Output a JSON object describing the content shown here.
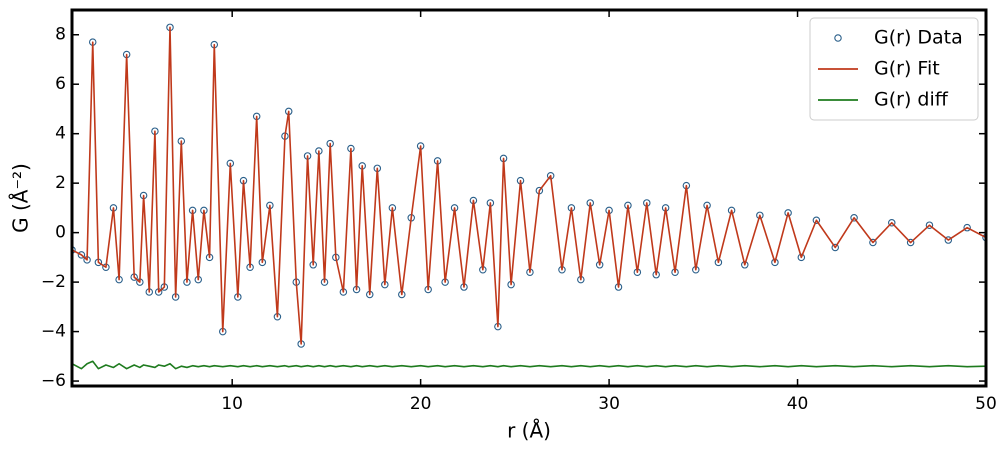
{
  "chart_data": {
    "type": "line",
    "xlabel": "r (Å)",
    "ylabel": "G (Å⁻²)",
    "xlim": [
      1.5,
      50
    ],
    "ylim": [
      -6.2,
      9
    ],
    "xticks": [
      10,
      20,
      30,
      40,
      50
    ],
    "yticks": [
      {
        "value": -6,
        "label": "−6"
      },
      {
        "value": -4,
        "label": "−4"
      },
      {
        "value": -2,
        "label": "−2"
      },
      0,
      2,
      4,
      6,
      8
    ],
    "legend": "upper right",
    "x": [
      1.5,
      2.0,
      2.3,
      2.6,
      2.9,
      3.3,
      3.7,
      4.0,
      4.4,
      4.8,
      5.1,
      5.3,
      5.6,
      5.9,
      6.1,
      6.4,
      6.7,
      7.0,
      7.3,
      7.6,
      7.9,
      8.2,
      8.5,
      8.8,
      9.05,
      9.5,
      9.9,
      10.3,
      10.6,
      10.95,
      11.3,
      11.6,
      12.0,
      12.4,
      12.8,
      13.0,
      13.4,
      13.66,
      14.0,
      14.3,
      14.6,
      14.9,
      15.2,
      15.5,
      15.9,
      16.3,
      16.6,
      16.9,
      17.3,
      17.7,
      18.1,
      18.5,
      19.0,
      19.5,
      20.0,
      20.4,
      20.9,
      21.3,
      21.8,
      22.3,
      22.8,
      23.3,
      23.7,
      24.1,
      24.4,
      24.8,
      25.3,
      25.8,
      26.3,
      26.9,
      27.5,
      28.0,
      28.5,
      29.0,
      29.5,
      30.0,
      30.5,
      31.0,
      31.5,
      32.0,
      32.5,
      33.0,
      33.5,
      34.1,
      34.6,
      35.2,
      35.8,
      36.5,
      37.2,
      38.0,
      38.8,
      39.5,
      40.2,
      41.0,
      42.0,
      43.0,
      44.0,
      45.0,
      46.0,
      47.0,
      48.0,
      49.0,
      50.0
    ],
    "series": [
      {
        "name": "G(r) Data",
        "style": "scatter",
        "color": "#2a5f8a",
        "values": [
          -0.7,
          -0.9,
          -1.1,
          7.7,
          -1.2,
          -1.4,
          1.0,
          -1.9,
          7.2,
          -1.8,
          -2.0,
          1.5,
          -2.4,
          4.1,
          -2.4,
          -2.2,
          8.3,
          -2.6,
          3.7,
          -2.0,
          0.9,
          -1.9,
          0.9,
          -1.0,
          7.6,
          -4.0,
          2.8,
          -2.6,
          2.1,
          -1.4,
          4.7,
          -1.2,
          1.1,
          -3.4,
          3.9,
          4.9,
          -2.0,
          -4.5,
          3.1,
          -1.3,
          3.3,
          -2.0,
          3.6,
          -1.0,
          -2.4,
          3.4,
          -2.3,
          2.7,
          -2.5,
          2.6,
          -2.1,
          1.0,
          -2.5,
          0.6,
          3.5,
          -2.3,
          2.9,
          -2.0,
          1.0,
          -2.2,
          1.3,
          -1.5,
          1.2,
          -3.8,
          3.0,
          -2.1,
          2.1,
          -1.6,
          1.7,
          2.3,
          -1.5,
          1.0,
          -1.9,
          1.2,
          -1.3,
          0.9,
          -2.2,
          1.1,
          -1.6,
          1.2,
          -1.7,
          1.0,
          -1.6,
          1.9,
          -1.5,
          1.1,
          -1.2,
          0.9,
          -1.3,
          0.7,
          -1.2,
          0.8,
          -1.0,
          0.5,
          -0.6,
          0.6,
          -0.4,
          0.4,
          -0.4,
          0.3,
          -0.3,
          0.2,
          -0.2
        ]
      },
      {
        "name": "G(r) Fit",
        "style": "line",
        "color": "#c0391b",
        "values": [
          -0.7,
          -0.9,
          -1.1,
          7.7,
          -1.2,
          -1.4,
          1.0,
          -1.9,
          7.2,
          -1.8,
          -2.0,
          1.5,
          -2.4,
          4.1,
          -2.4,
          -2.2,
          8.3,
          -2.6,
          3.7,
          -2.0,
          0.9,
          -1.9,
          0.9,
          -1.0,
          7.6,
          -4.0,
          2.8,
          -2.6,
          2.1,
          -1.4,
          4.7,
          -1.2,
          1.1,
          -3.4,
          3.9,
          4.9,
          -2.0,
          -4.5,
          3.1,
          -1.3,
          3.3,
          -2.0,
          3.6,
          -1.0,
          -2.4,
          3.4,
          -2.3,
          2.7,
          -2.5,
          2.6,
          -2.1,
          1.0,
          -2.5,
          0.6,
          3.5,
          -2.3,
          2.9,
          -2.0,
          1.0,
          -2.2,
          1.3,
          -1.5,
          1.2,
          -3.8,
          3.0,
          -2.1,
          2.1,
          -1.6,
          1.7,
          2.3,
          -1.5,
          1.0,
          -1.9,
          1.2,
          -1.3,
          0.9,
          -2.2,
          1.1,
          -1.6,
          1.2,
          -1.7,
          1.0,
          -1.6,
          1.9,
          -1.5,
          1.1,
          -1.2,
          0.9,
          -1.3,
          0.7,
          -1.2,
          0.8,
          -1.0,
          0.5,
          -0.6,
          0.6,
          -0.4,
          0.4,
          -0.4,
          0.3,
          -0.3,
          0.2,
          -0.2
        ]
      },
      {
        "name": "G(r) diff",
        "style": "line",
        "color": "#1e7b1e",
        "values": [
          -5.3,
          -5.5,
          -5.3,
          -5.2,
          -5.5,
          -5.35,
          -5.45,
          -5.3,
          -5.5,
          -5.35,
          -5.45,
          -5.35,
          -5.4,
          -5.45,
          -5.35,
          -5.4,
          -5.3,
          -5.5,
          -5.4,
          -5.45,
          -5.38,
          -5.42,
          -5.38,
          -5.42,
          -5.38,
          -5.42,
          -5.38,
          -5.42,
          -5.38,
          -5.42,
          -5.38,
          -5.42,
          -5.38,
          -5.42,
          -5.38,
          -5.42,
          -5.38,
          -5.42,
          -5.38,
          -5.42,
          -5.38,
          -5.42,
          -5.38,
          -5.42,
          -5.38,
          -5.42,
          -5.38,
          -5.42,
          -5.38,
          -5.42,
          -5.38,
          -5.42,
          -5.38,
          -5.42,
          -5.38,
          -5.42,
          -5.38,
          -5.42,
          -5.38,
          -5.42,
          -5.38,
          -5.42,
          -5.38,
          -5.42,
          -5.38,
          -5.42,
          -5.38,
          -5.42,
          -5.38,
          -5.42,
          -5.38,
          -5.42,
          -5.38,
          -5.42,
          -5.38,
          -5.42,
          -5.38,
          -5.42,
          -5.38,
          -5.42,
          -5.38,
          -5.42,
          -5.38,
          -5.42,
          -5.38,
          -5.42,
          -5.38,
          -5.42,
          -5.38,
          -5.42,
          -5.38,
          -5.42,
          -5.38,
          -5.42,
          -5.38,
          -5.42,
          -5.38,
          -5.42,
          -5.38,
          -5.42,
          -5.38,
          -5.42,
          -5.4
        ]
      }
    ]
  }
}
